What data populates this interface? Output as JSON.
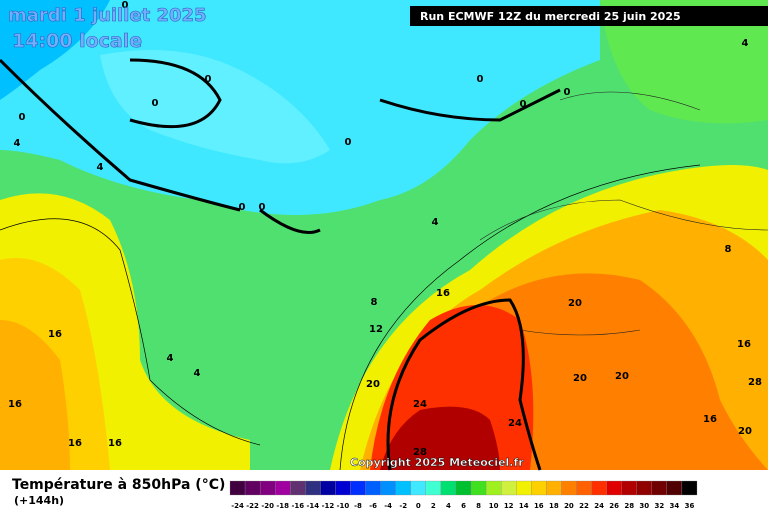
{
  "header": {
    "date": "mardi 1 juillet 2025",
    "time": "14:00 locale",
    "run": "Run ECMWF 12Z du mercredi 25 juin 2025"
  },
  "copyright": "Copyright 2025 Meteociel.fr",
  "legend": {
    "title": "Température à 850hPa (°C)",
    "subtitle": "(+144h)",
    "ticks": [
      -24,
      -22,
      -20,
      -18,
      -16,
      -14,
      -12,
      -10,
      -8,
      -6,
      -4,
      -2,
      0,
      2,
      4,
      6,
      8,
      10,
      12,
      14,
      16,
      18,
      20,
      22,
      24,
      26,
      28,
      30,
      32,
      34,
      36
    ],
    "colors": [
      "#400040",
      "#600060",
      "#800080",
      "#a000a0",
      "#603070",
      "#303080",
      "#0000a0",
      "#0000d0",
      "#0030ff",
      "#0060ff",
      "#0090ff",
      "#00c0ff",
      "#40e8ff",
      "#40ffd0",
      "#00e070",
      "#00c030",
      "#40e020",
      "#a0f020",
      "#d0f040",
      "#f0f000",
      "#ffd000",
      "#ffb000",
      "#ff8000",
      "#ff6000",
      "#ff3000",
      "#e00000",
      "#b00000",
      "#900000",
      "#700000",
      "#500000",
      "#000000"
    ]
  },
  "contour_labels": [
    0,
    0,
    0,
    0,
    0,
    0,
    0,
    0,
    0,
    0,
    4,
    4,
    4,
    4,
    4,
    4,
    8,
    8,
    12,
    16,
    16,
    16,
    16,
    16,
    20,
    20,
    20,
    20,
    20,
    24,
    24,
    28,
    28,
    16,
    16
  ]
}
